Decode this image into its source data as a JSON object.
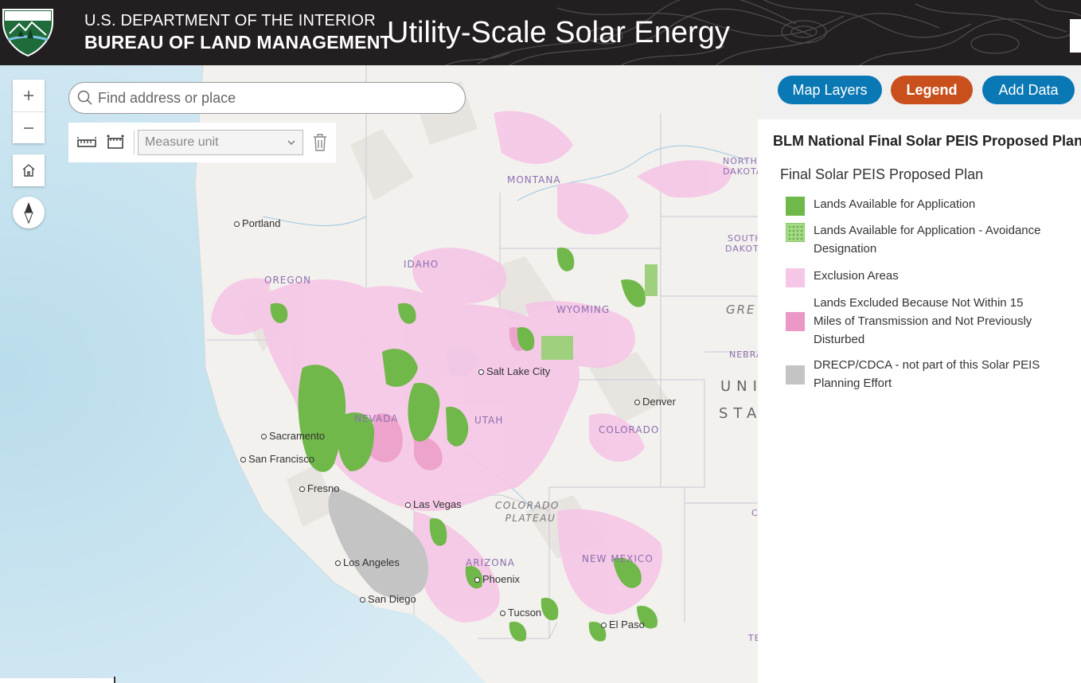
{
  "header": {
    "agency_line1": "U.S. DEPARTMENT OF THE INTERIOR",
    "agency_line2": "BUREAU OF LAND MANAGEMENT",
    "app_title": "Utility-Scale Solar Energy"
  },
  "search": {
    "placeholder": "Find address or place"
  },
  "measure": {
    "unit_placeholder": "Measure unit"
  },
  "panel": {
    "buttons": {
      "map_layers": "Map Layers",
      "legend": "Legend",
      "add_data": "Add Data"
    },
    "legend_title": "BLM National Final Solar PEIS Proposed Plan",
    "legend_subtitle": "Final Solar PEIS Proposed Plan",
    "items": [
      {
        "label": "Lands Available for Application",
        "color": "#70b84a",
        "pattern": "solid"
      },
      {
        "label": "Lands Available for Application - Avoidance Designation",
        "color": "#70b84a",
        "pattern": "dotted"
      },
      {
        "label": "Exclusion Areas",
        "color": "#f6c6e6",
        "pattern": "solid"
      },
      {
        "label": "Lands Excluded Because Not Within 15 Miles of Transmission and Not Previously Disturbed",
        "color": "#ec98c6",
        "pattern": "solid"
      },
      {
        "label": "DRECP/CDCA - not part of this Solar PEIS Planning Effort",
        "color": "#c4c4c4",
        "pattern": "solid"
      }
    ]
  },
  "map": {
    "states": [
      "MONTANA",
      "IDAHO",
      "OREGON",
      "WYOMING",
      "NEVADA",
      "UTAH",
      "COLORADO",
      "ARIZONA",
      "NEW MEXICO"
    ],
    "edge_labels": [
      "NORTH",
      "DAKOTA",
      "SOUTH",
      "DAKOTA",
      "GRE",
      "NEBRA",
      "UNI",
      "STA",
      "C",
      "TE"
    ],
    "region_label_line1": "COLORADO",
    "region_label_line2": "PLATEAU",
    "cities": [
      "Portland",
      "Salt Lake City",
      "Denver",
      "Sacramento",
      "San Francisco",
      "Fresno",
      "Las Vegas",
      "Los Angeles",
      "Phoenix",
      "San Diego",
      "Tucson",
      "El Paso"
    ]
  }
}
